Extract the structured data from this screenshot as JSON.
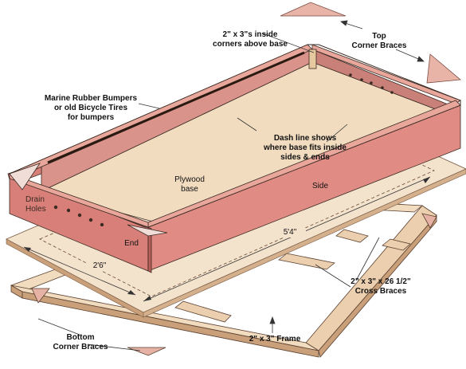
{
  "labels": {
    "top_corner_braces": [
      "Top",
      "Corner Braces"
    ],
    "inside_corners": [
      "2\" x 3\"s inside",
      "corners above base"
    ],
    "bumpers": [
      "Marine Rubber Bumpers",
      "or old Bicycle Tires",
      "for bumpers"
    ],
    "dash_line": [
      "Dash line shows",
      "where base fits inside",
      "sides & ends"
    ],
    "plywood_base": [
      "Plywood",
      "base"
    ],
    "side": "Side",
    "drain_holes": [
      "Drain",
      "Holes"
    ],
    "end": "End",
    "length_dim": "5'4\"",
    "width_dim": "2'6\"",
    "cross_braces": [
      "2\" x 3\" x 26 1/2\"",
      "Cross Braces"
    ],
    "bottom_corner_braces": [
      "Bottom",
      "Corner Braces"
    ],
    "frame": "2\" x 3\" Frame"
  },
  "colors": {
    "wood_light": "#f1dcc0",
    "wood_mid": "#e8c9a4",
    "wood_edge": "#c9a07a",
    "box_side": "#d77f78",
    "box_side_dark": "#b95f5a",
    "box_top": "#e9a79c",
    "outline": "#3a2a22"
  }
}
